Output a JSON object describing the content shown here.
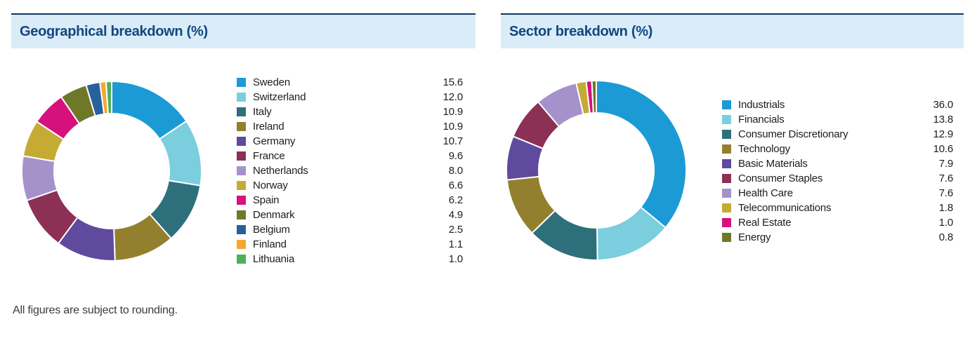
{
  "footer": {
    "note": "All figures are subject to rounding."
  },
  "theme": {
    "header_background": "#d9ecf8",
    "header_border": "#10365f",
    "title_color": "#14467e",
    "legend_text_color": "#1d1d1b",
    "slice_gap_color": "#ffffff"
  },
  "chart_data": [
    {
      "type": "pie",
      "donut": true,
      "title": "Geographical breakdown (%)",
      "legend_position": "right",
      "value_decimals": 1,
      "labels": [
        "Sweden",
        "Switzerland",
        "Italy",
        "Ireland",
        "Germany",
        "France",
        "Netherlands",
        "Norway",
        "Spain",
        "Denmark",
        "Belgium",
        "Finland",
        "Lithuania"
      ],
      "values": [
        15.6,
        12.0,
        10.9,
        10.9,
        10.7,
        9.6,
        8.0,
        6.6,
        6.2,
        4.9,
        2.5,
        1.1,
        1.0
      ],
      "colors": [
        "#1c9ad6",
        "#7bcede",
        "#2e6f7c",
        "#93802f",
        "#5f4a9e",
        "#8c3055",
        "#a592cb",
        "#c5ab34",
        "#d6117e",
        "#6f7829",
        "#26619c",
        "#f5a733",
        "#4cb157"
      ]
    },
    {
      "type": "pie",
      "donut": true,
      "title": "Sector breakdown (%)",
      "legend_position": "right",
      "value_decimals": 1,
      "labels": [
        "Industrials",
        "Financials",
        "Consumer Discretionary",
        "Technology",
        "Basic Materials",
        "Consumer Staples",
        "Health Care",
        "Telecommunications",
        "Real Estate",
        "Energy"
      ],
      "values": [
        36.0,
        13.8,
        12.9,
        10.6,
        7.9,
        7.6,
        7.6,
        1.8,
        1.0,
        0.8
      ],
      "colors": [
        "#1c9ad6",
        "#7bcede",
        "#2e6f7c",
        "#93802f",
        "#5f4a9e",
        "#8c3055",
        "#a592cb",
        "#c5ab34",
        "#d6117e",
        "#6f7829"
      ]
    }
  ]
}
